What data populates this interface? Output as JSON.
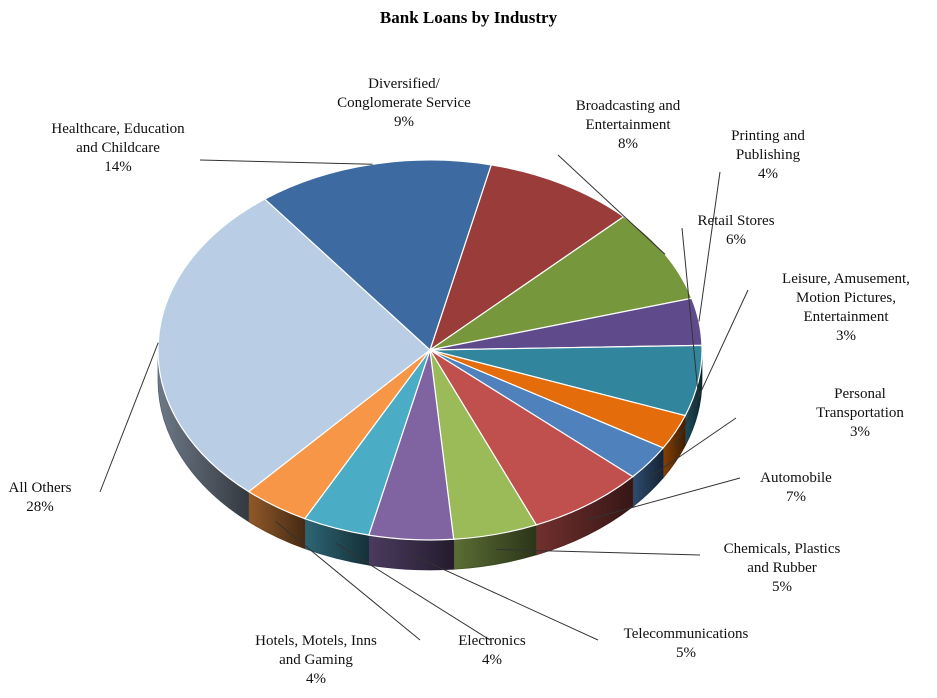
{
  "chart_data": {
    "type": "pie",
    "title": "Bank Loans by Industry",
    "slices": [
      {
        "name": "Diversified/ Conglomerate Service",
        "lines": [
          "Diversified/",
          "Conglomerate Service"
        ],
        "value": 9,
        "label": "9%",
        "color": "#993c3a"
      },
      {
        "name": "Broadcasting and Entertainment",
        "lines": [
          "Broadcasting and",
          "Entertainment"
        ],
        "value": 8,
        "label": "8%",
        "color": "#77973d"
      },
      {
        "name": "Printing and Publishing",
        "lines": [
          "Printing and",
          "Publishing"
        ],
        "value": 4,
        "label": "4%",
        "color": "#5f4b8b"
      },
      {
        "name": "Retail Stores",
        "lines": [
          "Retail Stores"
        ],
        "value": 6,
        "label": "6%",
        "color": "#31859c"
      },
      {
        "name": "Leisure, Amusement, Motion Pictures, Entertainment",
        "lines": [
          "Leisure, Amusement,",
          "Motion Pictures,",
          "Entertainment"
        ],
        "value": 3,
        "label": "3%",
        "color": "#e46c0a"
      },
      {
        "name": "Personal Transportation",
        "lines": [
          "Personal",
          "Transportation"
        ],
        "value": 3,
        "label": "3%",
        "color": "#4f81bd"
      },
      {
        "name": "Automobile",
        "lines": [
          "Automobile"
        ],
        "value": 7,
        "label": "7%",
        "color": "#c0504d"
      },
      {
        "name": "Chemicals, Plastics and Rubber",
        "lines": [
          "Chemicals, Plastics",
          "and Rubber"
        ],
        "value": 5,
        "label": "5%",
        "color": "#9bbb59"
      },
      {
        "name": "Telecommunications",
        "lines": [
          "Telecommunications"
        ],
        "value": 5,
        "label": "5%",
        "color": "#8064a2"
      },
      {
        "name": "Electronics",
        "lines": [
          "Electronics"
        ],
        "value": 4,
        "label": "4%",
        "color": "#4bacc6"
      },
      {
        "name": "Hotels, Motels, Inns and Gaming",
        "lines": [
          "Hotels, Motels, Inns",
          "and Gaming"
        ],
        "value": 4,
        "label": "4%",
        "color": "#f79646"
      },
      {
        "name": "All Others",
        "lines": [
          "All Others"
        ],
        "value": 28,
        "label": "28%",
        "color": "#b9cde5"
      },
      {
        "name": "Healthcare, Education and Childcare",
        "lines": [
          "Healthcare, Education",
          "and Childcare"
        ],
        "value": 14,
        "label": "14%",
        "color": "#3d6aa0"
      }
    ],
    "start_angle_deg": -77,
    "direction": "clockwise",
    "style": "3d-tilted",
    "legend": "none"
  }
}
